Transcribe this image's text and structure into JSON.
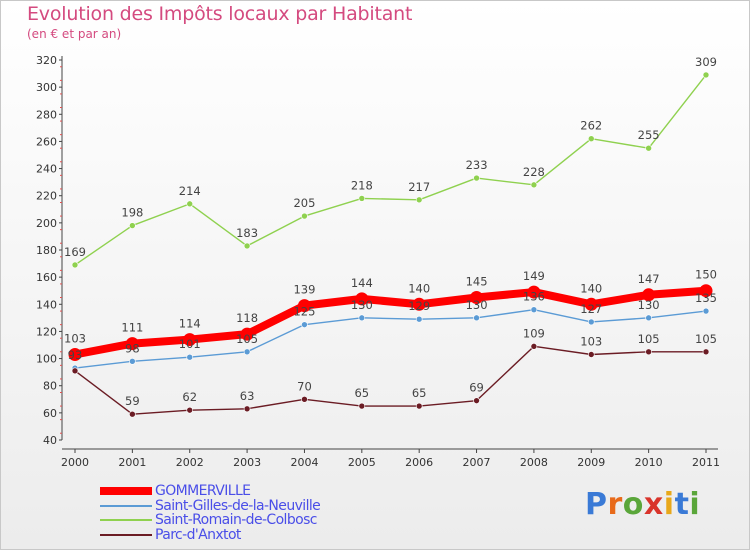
{
  "header": {
    "title": "Evolution des Impôts locaux par Habitant",
    "subtitle": "(en € et par an)"
  },
  "chart_data": {
    "type": "line",
    "title": "Evolution des Impôts locaux par Habitant",
    "subtitle": "(en € et par an)",
    "xlabel": "",
    "ylabel": "",
    "x": [
      "2000",
      "2001",
      "2002",
      "2003",
      "2004",
      "2005",
      "2006",
      "2007",
      "2008",
      "2009",
      "2010",
      "2011"
    ],
    "ylim": [
      40,
      320
    ],
    "yticks": [
      40,
      60,
      80,
      100,
      120,
      140,
      160,
      180,
      200,
      220,
      240,
      260,
      280,
      300,
      320
    ],
    "grid": false,
    "legend_position": "bottom-left",
    "series": [
      {
        "name": "GOMMERVILLE",
        "color": "#ff0000",
        "values": [
          103,
          111,
          114,
          118,
          139,
          144,
          140,
          145,
          149,
          140,
          147,
          150
        ],
        "labels": [
          "103",
          "111",
          "114",
          "118",
          "139",
          "144",
          "140",
          "145",
          "149",
          "140",
          "147",
          "150"
        ]
      },
      {
        "name": "Saint-Gilles-de-la-Neuville",
        "color": "#5b9bd5",
        "values": [
          93,
          98,
          101,
          105,
          125,
          130,
          129,
          130,
          136,
          127,
          130,
          135
        ],
        "labels": [
          "93",
          "98",
          "101",
          "105",
          "125",
          "130",
          "129",
          "130",
          "136",
          "127",
          "130",
          "135"
        ]
      },
      {
        "name": "Saint-Romain-de-Colbosc",
        "color": "#8fd14f",
        "values": [
          169,
          198,
          214,
          183,
          205,
          218,
          217,
          233,
          228,
          262,
          255,
          309
        ],
        "labels": [
          "169",
          "198",
          "214",
          "183",
          "205",
          "218",
          "217",
          "233",
          "228",
          "262",
          "255",
          "309"
        ]
      },
      {
        "name": "Parc-d'Anxtot",
        "color": "#6b1c24",
        "values": [
          91,
          59,
          62,
          63,
          70,
          65,
          65,
          69,
          109,
          103,
          105,
          105
        ],
        "labels": [
          "",
          "59",
          "62",
          "63",
          "70",
          "65",
          "65",
          "69",
          "109",
          "103",
          "105",
          "105"
        ]
      }
    ]
  },
  "logo": {
    "letters": [
      "P",
      "r",
      "o",
      "x",
      "i",
      "t",
      "i"
    ],
    "colors": [
      "#3a7ad6",
      "#e86a1a",
      "#5aa63a",
      "#d9342b",
      "#e8a81a",
      "#3a7ad6",
      "#5aa63a"
    ]
  }
}
